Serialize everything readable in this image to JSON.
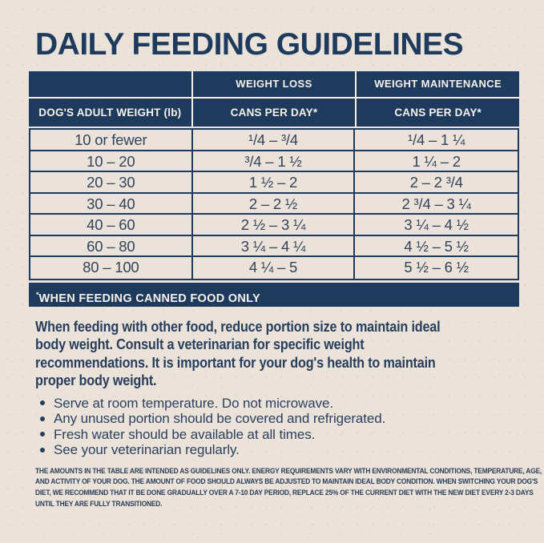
{
  "colors": {
    "navy": "#1e3a5c",
    "cream": "#ebe3da",
    "text_navy": "#2e4158",
    "header_text": "#f6f2ea"
  },
  "title": "DAILY FEEDING GUIDELINES",
  "table": {
    "header_top": [
      "",
      "WEIGHT LOSS",
      "WEIGHT MAINTENANCE"
    ],
    "header_sub": [
      "DOG'S ADULT WEIGHT (lb)",
      "CANS PER DAY*",
      "CANS PER DAY*"
    ],
    "rows": [
      {
        "weight": "10 or fewer",
        "loss": "¹/4 – ³/4",
        "maintenance": "¹/4 – 1 ¼"
      },
      {
        "weight": "10 – 20",
        "loss": "³/4 – 1 ½",
        "maintenance": "1 ¼ – 2"
      },
      {
        "weight": "20 – 30",
        "loss": "1 ½ – 2",
        "maintenance": "2 – 2 ³/4"
      },
      {
        "weight": "30 – 40",
        "loss": "2 – 2 ½",
        "maintenance": "2 ³/4 – 3 ¼"
      },
      {
        "weight": "40 – 60",
        "loss": "2 ½ – 3 ¼",
        "maintenance": "3 ¼ – 4 ½"
      },
      {
        "weight": "60 – 80",
        "loss": "3 ¼ – 4 ¼",
        "maintenance": "4 ½ – 5 ½"
      },
      {
        "weight": "80 – 100",
        "loss": "4 ¼ – 5",
        "maintenance": "5 ½ – 6 ½"
      }
    ],
    "footnote_marker": "*",
    "footnote": "WHEN FEEDING CANNED FOOD ONLY"
  },
  "paragraph": {
    "lines": [
      "When feeding with other food, reduce portion size to maintain ideal",
      "body weight. Consult a veterinarian for specific weight",
      "recommendations. It is important for your dog's health to maintain",
      "proper body weight."
    ]
  },
  "bullets": [
    "Serve at room temperature. Do not microwave.",
    "Any unused portion should be covered and refrigerated.",
    "Fresh water should be available at all times.",
    "See your veterinarian regularly."
  ],
  "fine_print": {
    "lines": [
      "THE AMOUNTS IN THE TABLE ARE INTENDED AS GUIDELINES ONLY. ENERGY REQUIREMENTS VARY WITH ENVIRONMENTAL CONDITIONS, TEMPERATURE, AGE,",
      "AND ACTIVITY OF YOUR DOG. THE AMOUNT OF FOOD SHOULD ALWAYS BE ADJUSTED TO MAINTAIN IDEAL BODY CONDITION. WHEN SWITCHING YOUR DOG'S",
      "DIET, WE RECOMMEND THAT IT BE DONE GRADUALLY OVER A 7-10 DAY PERIOD, REPLACE 25% OF THE CURRENT DIET WITH THE NEW DIET EVERY 2-3 DAYS",
      "UNTIL THEY ARE FULLY TRANSITIONED."
    ]
  }
}
